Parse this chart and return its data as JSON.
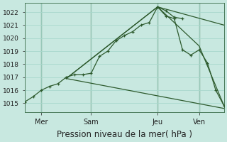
{
  "bg_color": "#c8e8e0",
  "grid_color": "#a8d8cc",
  "line_color": "#2d5a2d",
  "ylim": [
    1014.3,
    1022.7
  ],
  "yticks": [
    1015,
    1016,
    1017,
    1018,
    1019,
    1020,
    1021,
    1022
  ],
  "xlabel": "Pression niveau de la mer( hPa )",
  "xlabel_fontsize": 8.5,
  "xtick_labels": [
    "Mer",
    "Sam",
    "Jeu",
    "Ven"
  ],
  "xtick_positions": [
    2,
    8,
    16,
    21
  ],
  "xlim": [
    0,
    24
  ],
  "vlines": [
    2,
    8,
    16,
    21
  ],
  "line_detailed": {
    "x": [
      0,
      1,
      2,
      3,
      4,
      5,
      6,
      7,
      8,
      9,
      10,
      11,
      12,
      13,
      14,
      15,
      16,
      17,
      18,
      19
    ],
    "y": [
      1015.1,
      1015.5,
      1016.0,
      1016.3,
      1016.5,
      1017.0,
      1017.2,
      1017.2,
      1017.3,
      1018.6,
      1019.0,
      1019.8,
      1020.2,
      1020.5,
      1021.0,
      1021.2,
      1022.4,
      1022.1,
      1021.6,
      1021.5
    ]
  },
  "line_fan1": {
    "x": [
      5,
      16,
      24
    ],
    "y": [
      1016.9,
      1022.4,
      1021.0
    ]
  },
  "line_fan2": {
    "x": [
      5,
      16,
      21,
      24
    ],
    "y": [
      1016.9,
      1022.4,
      1019.4,
      1014.8
    ]
  },
  "line_fan3": {
    "x": [
      5,
      24
    ],
    "y": [
      1016.9,
      1014.6
    ]
  },
  "line_right": {
    "x": [
      16,
      17,
      18,
      19,
      20,
      21,
      22,
      23,
      24
    ],
    "y": [
      1022.4,
      1021.7,
      1021.5,
      1019.1,
      1018.7,
      1019.1,
      1018.1,
      1016.0,
      1014.8
    ]
  }
}
